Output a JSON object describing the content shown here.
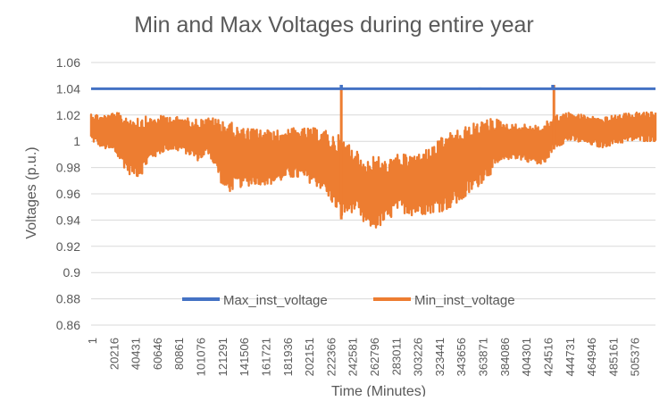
{
  "chart_data": {
    "type": "line",
    "title": "Min and Max Voltages during entire year",
    "xlabel": "Time (Minutes)",
    "ylabel": "Voltages (p.u.)",
    "ylim": [
      0.86,
      1.06
    ],
    "yticks": [
      "1.06",
      "1.04",
      "1.02",
      "1",
      "0.98",
      "0.96",
      "0.94",
      "0.92",
      "0.9",
      "0.88",
      "0.86"
    ],
    "xlim": [
      1,
      525600
    ],
    "xticks": [
      "1",
      "20216",
      "40431",
      "60646",
      "80861",
      "101076",
      "121291",
      "141506",
      "161721",
      "181936",
      "202151",
      "222366",
      "242581",
      "262796",
      "283011",
      "303226",
      "323441",
      "343656",
      "363871",
      "384086",
      "404301",
      "424516",
      "444731",
      "464946",
      "485161",
      "505376"
    ],
    "legend_position": "bottom-inside",
    "series": [
      {
        "name": "Max_inst_voltage",
        "color": "#4472c4",
        "base": 1.04,
        "spikes": [
          [
            233000,
            1.043
          ],
          [
            362000,
            1.041
          ],
          [
            430000,
            1.043
          ]
        ]
      },
      {
        "name": "Min_inst_voltage",
        "color": "#ed7d31",
        "envelope_x": [
          1,
          10000,
          22000,
          35000,
          45000,
          55000,
          70000,
          85000,
          100000,
          110000,
          125000,
          140000,
          155000,
          170000,
          185000,
          200000,
          215000,
          225000,
          232000,
          245000,
          255000,
          265000,
          275000,
          285000,
          300000,
          315000,
          330000,
          345000,
          360000,
          375000,
          390000,
          405000,
          420000,
          432000,
          445000,
          460000,
          475000,
          490000,
          505000,
          525600
        ],
        "envelope_low": [
          1.0,
          0.995,
          0.99,
          0.975,
          0.972,
          0.985,
          0.993,
          0.992,
          0.985,
          0.99,
          0.96,
          0.965,
          0.967,
          0.967,
          0.972,
          0.97,
          0.963,
          0.952,
          0.94,
          0.947,
          0.935,
          0.933,
          0.937,
          0.947,
          0.943,
          0.945,
          0.947,
          0.953,
          0.965,
          0.977,
          0.987,
          0.985,
          0.98,
          0.995,
          1.0,
          0.998,
          0.995,
          0.998,
          1.0,
          1.0
        ],
        "envelope_high": [
          1.022,
          1.02,
          1.022,
          1.02,
          1.02,
          1.018,
          1.02,
          1.018,
          1.017,
          1.018,
          1.017,
          1.01,
          1.01,
          1.008,
          1.01,
          1.01,
          1.01,
          1.005,
          1.005,
          0.995,
          0.985,
          0.99,
          0.985,
          0.99,
          0.99,
          0.995,
          1.005,
          1.01,
          1.015,
          1.018,
          1.013,
          1.013,
          1.012,
          1.02,
          1.022,
          1.02,
          1.018,
          1.02,
          1.022,
          1.022
        ],
        "spikes": [
          [
            233000,
            1.04
          ],
          [
            431000,
            1.043
          ]
        ]
      }
    ]
  }
}
